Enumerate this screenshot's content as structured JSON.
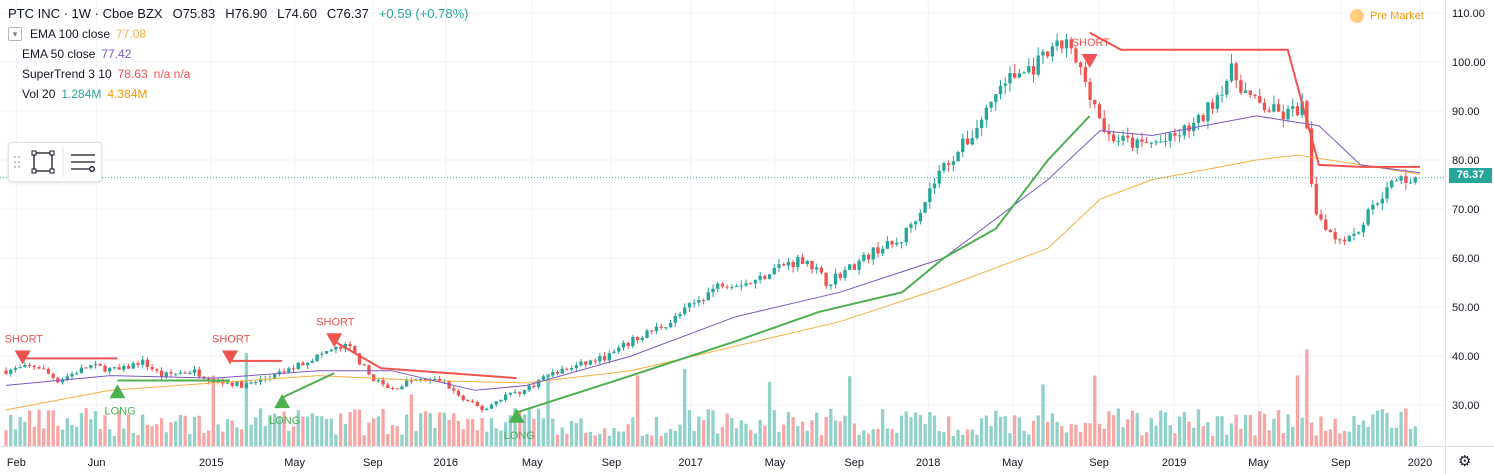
{
  "header": {
    "symbol": "PTC INC · 1W · Cboe BZX",
    "open": "O75.83",
    "high": "H76.90",
    "low": "L74.60",
    "close": "C76.37",
    "change": "+0.59 (+0.78%)"
  },
  "indicators": [
    {
      "name": "EMA 100 close",
      "value": "77.08",
      "color": "#f5b041"
    },
    {
      "name": "EMA 50 close",
      "value": "77.42",
      "color": "#7e57c2"
    },
    {
      "name": "SuperTrend 3 10",
      "value": "78.63",
      "extra": "n/a n/a",
      "color": "#ef5350"
    },
    {
      "name": "Vol 20",
      "value": "1.284M",
      "extra": "4.384M",
      "color": "#26a69a"
    }
  ],
  "status": {
    "pre_market": "Pre Market"
  },
  "last_price": "76.37",
  "toolbar": {
    "drawing_icon": "rectangle-icon",
    "menu_icon": "list-icon",
    "settings_icon": "gear-icon"
  },
  "chart_data": {
    "type": "candlestick",
    "y_axis": {
      "ticks": [
        "110.00",
        "100.00",
        "90.00",
        "80.00",
        "70.00",
        "60.00",
        "50.00",
        "40.00",
        "30.00"
      ],
      "range": [
        22,
        112
      ]
    },
    "x_axis": {
      "ticks": [
        {
          "label": "Feb",
          "t": 0.01
        },
        {
          "label": "Jun",
          "t": 0.087
        },
        {
          "label": "2015",
          "t": 0.197
        },
        {
          "label": "May",
          "t": 0.277
        },
        {
          "label": "Sep",
          "t": 0.352
        },
        {
          "label": "2016",
          "t": 0.422
        },
        {
          "label": "May",
          "t": 0.505
        },
        {
          "label": "Sep",
          "t": 0.581
        },
        {
          "label": "2017",
          "t": 0.657
        },
        {
          "label": "May",
          "t": 0.738
        },
        {
          "label": "Sep",
          "t": 0.814
        },
        {
          "label": "2018",
          "t": 0.885
        },
        {
          "label": "May",
          "t": 0.966
        },
        {
          "label": "Sep",
          "t": 1.049
        },
        {
          "label": "2019",
          "t": 1.121
        },
        {
          "label": "May",
          "t": 1.202
        },
        {
          "label": "Sep",
          "t": 1.281
        },
        {
          "label": "2020",
          "t": 1.357
        }
      ]
    },
    "price_path": [
      [
        0,
        37
      ],
      [
        0.03,
        38
      ],
      [
        0.05,
        35
      ],
      [
        0.08,
        38
      ],
      [
        0.11,
        37
      ],
      [
        0.13,
        39
      ],
      [
        0.15,
        36
      ],
      [
        0.18,
        37
      ],
      [
        0.2,
        35
      ],
      [
        0.23,
        34
      ],
      [
        0.26,
        36
      ],
      [
        0.28,
        38
      ],
      [
        0.31,
        41
      ],
      [
        0.33,
        42
      ],
      [
        0.35,
        36
      ],
      [
        0.37,
        33
      ],
      [
        0.39,
        35
      ],
      [
        0.42,
        35
      ],
      [
        0.44,
        31
      ],
      [
        0.46,
        29
      ],
      [
        0.48,
        32
      ],
      [
        0.5,
        33
      ],
      [
        0.52,
        36
      ],
      [
        0.55,
        38
      ],
      [
        0.58,
        40
      ],
      [
        0.61,
        44
      ],
      [
        0.64,
        47
      ],
      [
        0.67,
        52
      ],
      [
        0.69,
        55
      ],
      [
        0.72,
        55
      ],
      [
        0.74,
        58
      ],
      [
        0.77,
        60
      ],
      [
        0.79,
        55
      ],
      [
        0.82,
        59
      ],
      [
        0.84,
        62
      ],
      [
        0.86,
        63
      ],
      [
        0.88,
        70
      ],
      [
        0.9,
        78
      ],
      [
        0.93,
        85
      ],
      [
        0.96,
        96
      ],
      [
        0.99,
        99
      ],
      [
        1.02,
        104
      ],
      [
        1.04,
        96
      ],
      [
        1.06,
        85
      ],
      [
        1.09,
        83
      ],
      [
        1.12,
        84
      ],
      [
        1.15,
        88
      ],
      [
        1.18,
        98
      ],
      [
        1.2,
        92
      ],
      [
        1.23,
        89
      ],
      [
        1.25,
        91
      ],
      [
        1.26,
        70
      ],
      [
        1.28,
        64
      ],
      [
        1.3,
        65
      ],
      [
        1.32,
        72
      ],
      [
        1.34,
        76
      ],
      [
        1.357,
        76.4
      ]
    ],
    "ema100": [
      [
        0,
        29
      ],
      [
        0.1,
        33
      ],
      [
        0.2,
        34.5
      ],
      [
        0.3,
        36
      ],
      [
        0.4,
        35
      ],
      [
        0.5,
        34.5
      ],
      [
        0.6,
        37
      ],
      [
        0.7,
        42
      ],
      [
        0.8,
        47
      ],
      [
        0.9,
        54
      ],
      [
        1.0,
        62
      ],
      [
        1.05,
        72
      ],
      [
        1.1,
        76
      ],
      [
        1.2,
        80
      ],
      [
        1.24,
        81
      ],
      [
        1.3,
        79
      ],
      [
        1.357,
        77.1
      ]
    ],
    "ema50": [
      [
        0,
        34
      ],
      [
        0.1,
        36
      ],
      [
        0.2,
        35.5
      ],
      [
        0.3,
        37
      ],
      [
        0.37,
        37
      ],
      [
        0.45,
        33
      ],
      [
        0.5,
        34
      ],
      [
        0.6,
        40
      ],
      [
        0.7,
        48
      ],
      [
        0.8,
        53
      ],
      [
        0.9,
        60
      ],
      [
        1.0,
        76
      ],
      [
        1.05,
        86
      ],
      [
        1.1,
        85
      ],
      [
        1.2,
        89
      ],
      [
        1.26,
        87
      ],
      [
        1.3,
        79
      ],
      [
        1.357,
        77.4
      ]
    ],
    "supertrend": [
      {
        "dir": "down",
        "pts": [
          [
            0.016,
            39.5
          ],
          [
            0.107,
            39.5
          ]
        ]
      },
      {
        "dir": "up",
        "pts": [
          [
            0.107,
            35
          ],
          [
            0.215,
            35
          ]
        ]
      },
      {
        "dir": "down",
        "pts": [
          [
            0.215,
            39
          ],
          [
            0.265,
            39
          ]
        ]
      },
      {
        "dir": "up",
        "pts": [
          [
            0.265,
            31.5
          ],
          [
            0.315,
            36.5
          ]
        ]
      },
      {
        "dir": "down",
        "pts": [
          [
            0.315,
            43
          ],
          [
            0.36,
            37.5
          ],
          [
            0.49,
            35.5
          ]
        ]
      },
      {
        "dir": "up",
        "pts": [
          [
            0.49,
            28.5
          ],
          [
            0.6,
            36
          ],
          [
            0.7,
            43
          ],
          [
            0.78,
            49
          ],
          [
            0.86,
            53
          ],
          [
            0.9,
            60
          ],
          [
            0.95,
            66
          ],
          [
            1.0,
            80
          ],
          [
            1.04,
            89
          ]
        ]
      },
      {
        "dir": "down",
        "pts": [
          [
            1.04,
            106
          ],
          [
            1.07,
            102.5
          ],
          [
            1.23,
            102.5
          ],
          [
            1.26,
            79
          ],
          [
            1.3,
            78.6
          ],
          [
            1.357,
            78.6
          ]
        ]
      }
    ],
    "signals": [
      {
        "label": "SHORT",
        "type": "short",
        "t": 0.016,
        "price": 39.5
      },
      {
        "label": "LONG",
        "type": "long",
        "t": 0.107,
        "price": 33
      },
      {
        "label": "SHORT",
        "type": "short",
        "t": 0.215,
        "price": 39.5
      },
      {
        "label": "LONG",
        "type": "long",
        "t": 0.265,
        "price": 31
      },
      {
        "label": "SHORT",
        "type": "short",
        "t": 0.315,
        "price": 43
      },
      {
        "label": "LONG",
        "type": "long",
        "t": 0.49,
        "price": 28
      },
      {
        "label": "SHORT",
        "type": "short",
        "t": 1.04,
        "price": 100
      }
    ],
    "colors": {
      "up": "#26a69a",
      "down": "#ef5350",
      "long": "#4caf50",
      "short": "#ef5350",
      "ema100": "#f5b041",
      "ema50": "#7e57c2"
    }
  }
}
